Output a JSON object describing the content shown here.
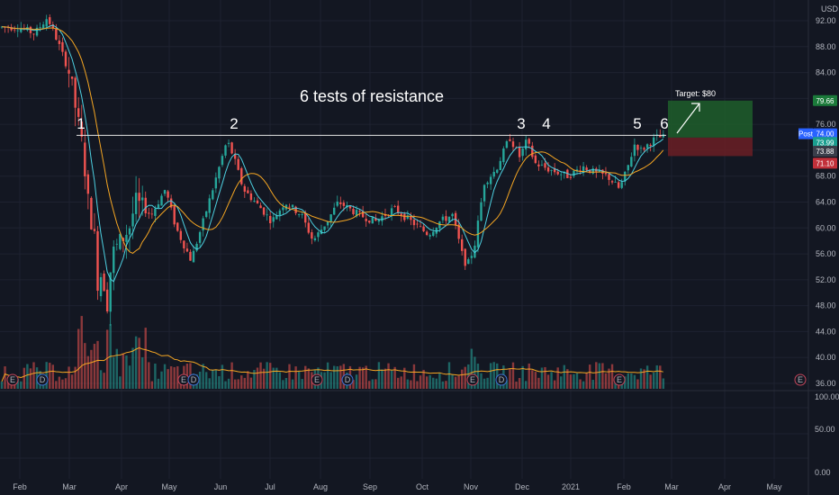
{
  "chart_data": {
    "type": "candlestick",
    "title": "6 tests of resistance",
    "currency": "USD",
    "y_ticks": [
      "92.00",
      "88.00",
      "84.00",
      "80.00",
      "76.00",
      "72.00",
      "68.00",
      "64.00",
      "60.00",
      "56.00",
      "52.00",
      "48.00",
      "44.00",
      "40.00",
      "36.00"
    ],
    "y_tick_values": [
      92,
      88,
      84,
      80,
      76,
      72,
      68,
      64,
      60,
      56,
      52,
      48,
      44,
      40,
      36
    ],
    "x_ticks": [
      "Feb",
      "Mar",
      "Apr",
      "May",
      "Jun",
      "Jul",
      "Aug",
      "Sep",
      "Oct",
      "Nov",
      "Dec",
      "2021",
      "Feb",
      "Mar",
      "Apr",
      "May"
    ],
    "ylim": [
      34.5,
      93.5
    ],
    "resistance_level": 74.3,
    "test_labels": [
      "1",
      "2",
      "3",
      "4",
      "5",
      "6"
    ],
    "price_tags": {
      "target": "79.66",
      "post_label": "Post",
      "post": "74.00",
      "last": "73.99",
      "stop_entry": "73.88",
      "stop": "71.10"
    },
    "target_label": "Target: $80",
    "position": {
      "target": 79.66,
      "entry": 73.95,
      "stop": 71.1
    },
    "volume_pane": {
      "ticks": [
        "100.00",
        "50.00",
        "0.00"
      ],
      "tick_values": [
        100,
        50,
        0
      ]
    },
    "earnings_marker": "E",
    "dividend_marker": "D",
    "colors": {
      "background": "#131722",
      "grid": "#1e2230",
      "up": "#26a69a",
      "down": "#ef5350",
      "ma_fast": "#4dd0e1",
      "ma_slow": "#f5a623",
      "resistance": "#e6e6e6",
      "target_zone": "#1f5e2a",
      "stop_zone": "#6b1f24"
    },
    "price_anchors": [
      {
        "d": "Feb 1",
        "p": 91
      },
      {
        "d": "Feb 10",
        "p": 90
      },
      {
        "d": "Feb 18",
        "p": 92.5
      },
      {
        "d": "Feb 24",
        "p": 89
      },
      {
        "d": "Mar 1",
        "p": 84
      },
      {
        "d": "Mar 5",
        "p": 78
      },
      {
        "d": "Mar 9",
        "p": 72
      },
      {
        "d": "Mar 12",
        "p": 64
      },
      {
        "d": "Mar 16",
        "p": 58
      },
      {
        "d": "Mar 18",
        "p": 50
      },
      {
        "d": "Mar 20",
        "p": 54
      },
      {
        "d": "Mar 23",
        "p": 48
      },
      {
        "d": "Mar 26",
        "p": 56
      },
      {
        "d": "Mar 31",
        "p": 58
      },
      {
        "d": "Apr 6",
        "p": 60
      },
      {
        "d": "Apr 10",
        "p": 64
      },
      {
        "d": "Apr 20",
        "p": 62
      },
      {
        "d": "Apr 29",
        "p": 66
      },
      {
        "d": "May 5",
        "p": 60
      },
      {
        "d": "May 14",
        "p": 55
      },
      {
        "d": "May 20",
        "p": 60
      },
      {
        "d": "May 28",
        "p": 67
      },
      {
        "d": "Jun 5",
        "p": 73.5
      },
      {
        "d": "Jun 9",
        "p": 71
      },
      {
        "d": "Jun 15",
        "p": 66
      },
      {
        "d": "Jun 26",
        "p": 63
      },
      {
        "d": "Jul 2",
        "p": 61
      },
      {
        "d": "Jul 10",
        "p": 64
      },
      {
        "d": "Jul 20",
        "p": 62
      },
      {
        "d": "Jul 27",
        "p": 58
      },
      {
        "d": "Aug 5",
        "p": 61
      },
      {
        "d": "Aug 12",
        "p": 64
      },
      {
        "d": "Aug 25",
        "p": 62
      },
      {
        "d": "Sep 4",
        "p": 61
      },
      {
        "d": "Sep 15",
        "p": 63
      },
      {
        "d": "Sep 25",
        "p": 61
      },
      {
        "d": "Oct 5",
        "p": 59
      },
      {
        "d": "Oct 12",
        "p": 61
      },
      {
        "d": "Oct 20",
        "p": 62
      },
      {
        "d": "Oct 26",
        "p": 56
      },
      {
        "d": "Oct 29",
        "p": 54
      },
      {
        "d": "Nov 3",
        "p": 57
      },
      {
        "d": "Nov 9",
        "p": 67
      },
      {
        "d": "Nov 16",
        "p": 69
      },
      {
        "d": "Nov 24",
        "p": 74
      },
      {
        "d": "Nov 30",
        "p": 71
      },
      {
        "d": "Dec 4",
        "p": 73.5
      },
      {
        "d": "Dec 9",
        "p": 70
      },
      {
        "d": "Dec 18",
        "p": 69
      },
      {
        "d": "Dec 30",
        "p": 68
      },
      {
        "d": "Jan 8",
        "p": 69.5
      },
      {
        "d": "Jan 15",
        "p": 68.5
      },
      {
        "d": "Jan 22",
        "p": 68
      },
      {
        "d": "Jan 29",
        "p": 66
      },
      {
        "d": "Feb 3",
        "p": 69
      },
      {
        "d": "Feb 8",
        "p": 73
      },
      {
        "d": "Feb 12",
        "p": 72
      },
      {
        "d": "Feb 17",
        "p": 73
      },
      {
        "d": "Feb 22",
        "p": 74
      }
    ]
  }
}
